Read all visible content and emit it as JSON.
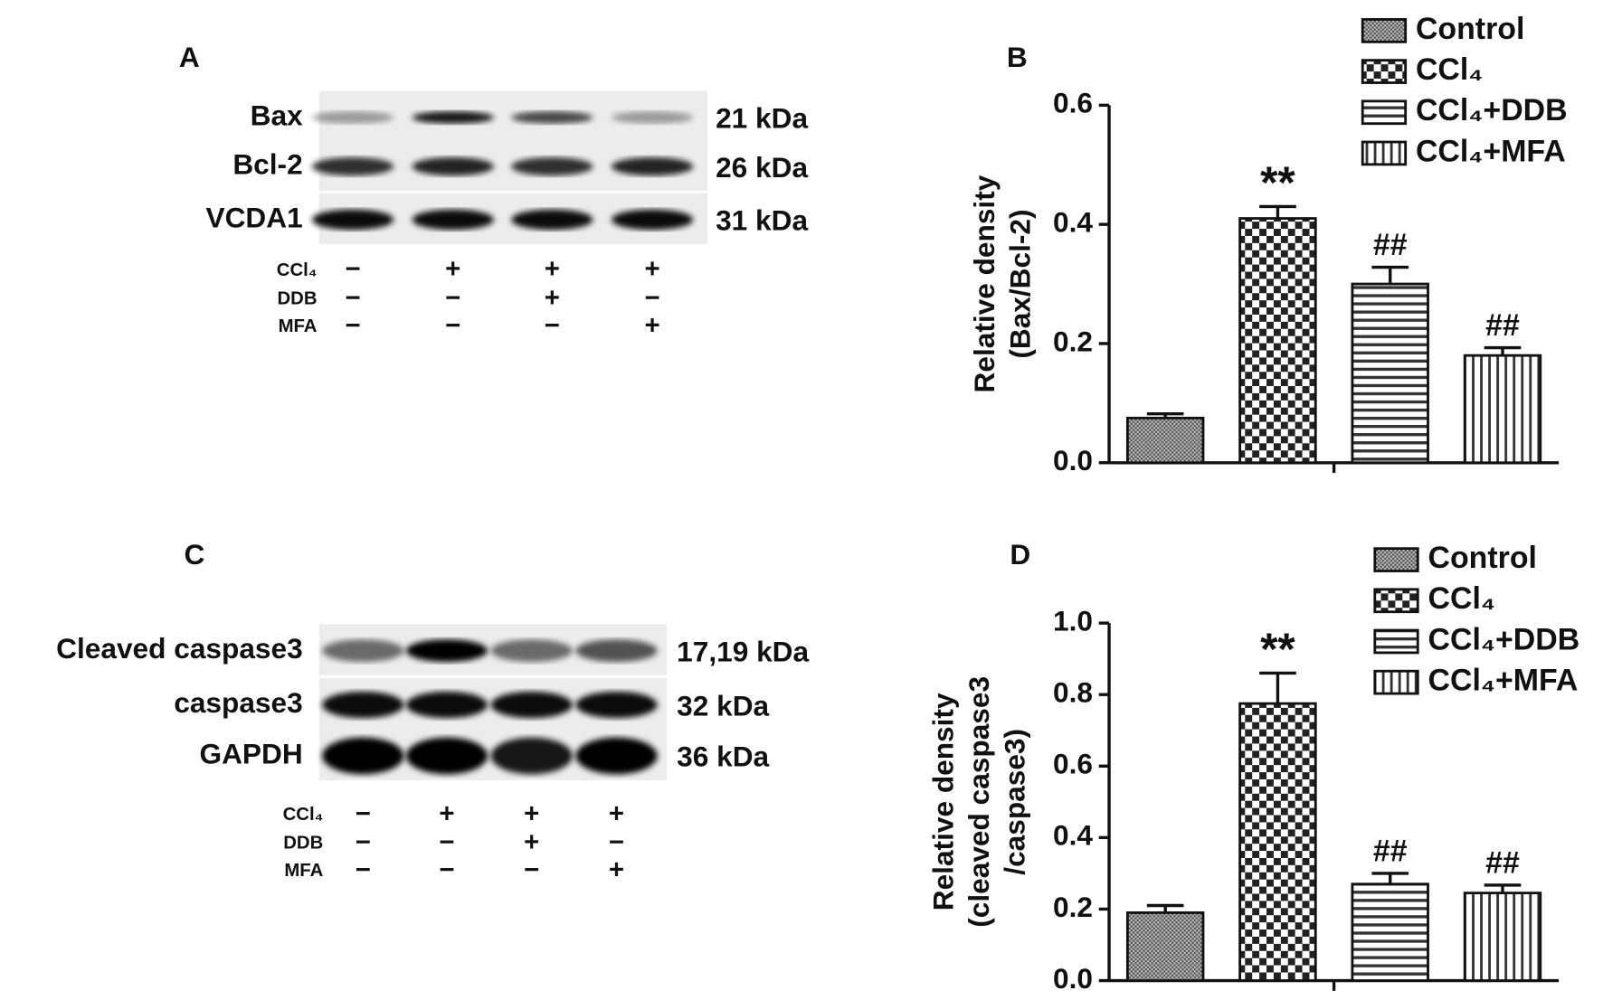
{
  "blots": [
    {
      "panel": "A",
      "rows": [
        {
          "name": "Bax",
          "size": "21 kDa"
        },
        {
          "name": "Bcl-2",
          "size": "26 kDa"
        },
        {
          "name": "VCDA1",
          "size": "31 kDa"
        }
      ],
      "treatments": [
        {
          "name": "CCl₄",
          "signs": [
            "−",
            "+",
            "+",
            "+"
          ]
        },
        {
          "name": "DDB",
          "signs": [
            "−",
            "−",
            "+",
            "−"
          ]
        },
        {
          "name": "MFA",
          "signs": [
            "−",
            "−",
            "−",
            "+"
          ]
        }
      ]
    },
    {
      "panel": "C",
      "rows": [
        {
          "name": "Cleaved caspase3",
          "size": "17,19 kDa"
        },
        {
          "name": "caspase3",
          "size": "32 kDa"
        },
        {
          "name": "GAPDH",
          "size": "36 kDa"
        }
      ],
      "treatments": [
        {
          "name": "CCl₄",
          "signs": [
            "−",
            "+",
            "+",
            "+"
          ]
        },
        {
          "name": "DDB",
          "signs": [
            "−",
            "−",
            "+",
            "−"
          ]
        },
        {
          "name": "MFA",
          "signs": [
            "−",
            "−",
            "−",
            "+"
          ]
        }
      ]
    }
  ],
  "chart_data": [
    {
      "type": "bar",
      "panel": "B",
      "ylabel": [
        "Relative density",
        "(Bax/Bcl-2)"
      ],
      "ylim": [
        0,
        0.6
      ],
      "yticks": [
        {
          "value": 0,
          "label": "0.0"
        },
        0.2,
        0.4,
        0.6
      ],
      "series": [
        {
          "name": "Control",
          "pattern": "dots",
          "values": [
            0.075
          ],
          "errors": [
            0.007
          ]
        },
        {
          "name": "CCl₄",
          "pattern": "checker",
          "values": [
            0.41
          ],
          "errors": [
            0.02
          ],
          "annotation": "**"
        },
        {
          "name": "CCl₄+DDB",
          "pattern": "hlines",
          "values": [
            0.3
          ],
          "errors": [
            0.028
          ],
          "annotation": "##"
        },
        {
          "name": "CCl₄+MFA",
          "pattern": "vlines",
          "values": [
            0.18
          ],
          "errors": [
            0.013
          ],
          "annotation": "##"
        }
      ]
    },
    {
      "type": "bar",
      "panel": "D",
      "ylabel": [
        "Relative density",
        "(cleaved caspase3",
        "/caspase3)"
      ],
      "ylim": [
        0,
        1.0
      ],
      "yticks": [
        {
          "value": 0,
          "label": "0.0"
        },
        0.2,
        0.4,
        0.6,
        0.8,
        {
          "value": 1.0,
          "label": "1.0"
        }
      ],
      "series": [
        {
          "name": "Control",
          "pattern": "dots",
          "values": [
            0.19
          ],
          "errors": [
            0.02
          ]
        },
        {
          "name": "CCl₄",
          "pattern": "checker",
          "values": [
            0.775
          ],
          "errors": [
            0.085
          ],
          "annotation": "**"
        },
        {
          "name": "CCl₄+DDB",
          "pattern": "hlines",
          "values": [
            0.27
          ],
          "errors": [
            0.03
          ],
          "annotation": "##"
        },
        {
          "name": "CCl₄+MFA",
          "pattern": "vlines",
          "values": [
            0.245
          ],
          "errors": [
            0.022
          ],
          "annotation": "##"
        }
      ]
    }
  ]
}
